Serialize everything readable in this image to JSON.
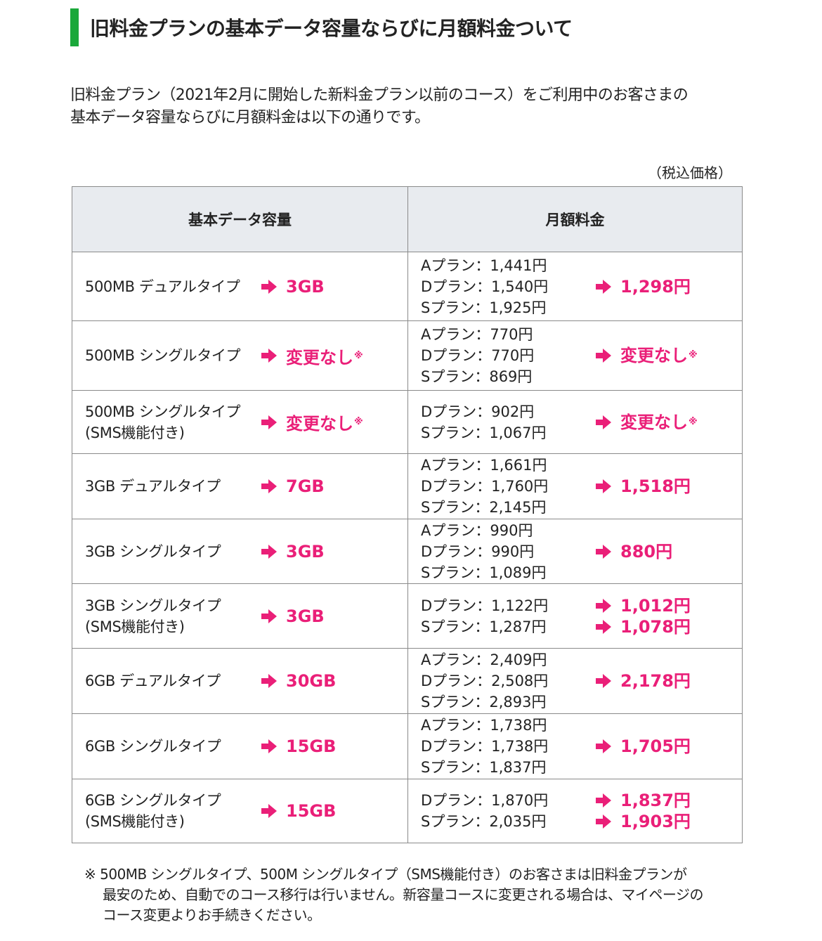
{
  "heading": "旧料金プランの基本データ容量ならびに月額料金ついて",
  "intro": [
    "旧料金プラン（2021年2月に開始した新料金プラン以前のコース）をご利用中のお客さまの",
    "基本データ容量ならびに月額料金は以下の通りです。"
  ],
  "tax_note": "（税込価格）",
  "accent_color": "#ea1f78",
  "heading_bar_color": "#1aa83a",
  "table": {
    "headers": [
      "基本データ容量",
      "月額料金"
    ],
    "rows": [
      {
        "plan": [
          "500MB デュアルタイプ"
        ],
        "new_data": "3GB",
        "new_data_mark": "",
        "fees": [
          "Aプラン：1,441円",
          "Dプラン：1,540円",
          "Sプラン：1,925円"
        ],
        "new_fees": [
          {
            "value": "1,298円",
            "mark": ""
          }
        ]
      },
      {
        "plan": [
          "500MB シングルタイプ"
        ],
        "new_data": "変更なし",
        "new_data_mark": "※",
        "fees": [
          "Aプラン：770円",
          "Dプラン：770円",
          "Sプラン：869円"
        ],
        "new_fees": [
          {
            "value": "変更なし",
            "mark": "※"
          }
        ]
      },
      {
        "plan": [
          "500MB  シングルタイプ",
          "(SMS機能付き)"
        ],
        "new_data": "変更なし",
        "new_data_mark": "※",
        "fees": [
          "Dプラン：902円",
          "Sプラン：1,067円"
        ],
        "new_fees": [
          {
            "value": "変更なし",
            "mark": "※"
          }
        ]
      },
      {
        "plan": [
          "3GB デュアルタイプ"
        ],
        "new_data": "7GB",
        "new_data_mark": "",
        "fees": [
          "Aプラン：1,661円",
          "Dプラン：1,760円",
          "Sプラン：2,145円"
        ],
        "new_fees": [
          {
            "value": "1,518円",
            "mark": ""
          }
        ]
      },
      {
        "plan": [
          "3GB シングルタイプ"
        ],
        "new_data": "3GB",
        "new_data_mark": "",
        "fees": [
          "Aプラン：990円",
          "Dプラン：990円",
          "Sプラン：1,089円"
        ],
        "new_fees": [
          {
            "value": "880円",
            "mark": ""
          }
        ]
      },
      {
        "plan": [
          "3GB シングルタイプ",
          "(SMS機能付き)"
        ],
        "new_data": "3GB",
        "new_data_mark": "",
        "fees": [
          "Dプラン：1,122円",
          "Sプラン：1,287円"
        ],
        "new_fees": [
          {
            "value": "1,012円",
            "mark": ""
          },
          {
            "value": "1,078円",
            "mark": ""
          }
        ]
      },
      {
        "plan": [
          "6GB デュアルタイプ"
        ],
        "new_data": "30GB",
        "new_data_mark": "",
        "fees": [
          "Aプラン：2,409円",
          "Dプラン：2,508円",
          "Sプラン：2,893円"
        ],
        "new_fees": [
          {
            "value": "2,178円",
            "mark": ""
          }
        ]
      },
      {
        "plan": [
          "6GB シングルタイプ"
        ],
        "new_data": "15GB",
        "new_data_mark": "",
        "fees": [
          "Aプラン：1,738円",
          "Dプラン：1,738円",
          "Sプラン：1,837円"
        ],
        "new_fees": [
          {
            "value": "1,705円",
            "mark": ""
          }
        ]
      },
      {
        "plan": [
          "6GB シングルタイプ",
          "(SMS機能付き)"
        ],
        "new_data": "15GB",
        "new_data_mark": "",
        "fees": [
          "Dプラン：1,870円",
          "Sプラン：2,035円"
        ],
        "new_fees": [
          {
            "value": "1,837円",
            "mark": ""
          },
          {
            "value": "1,903円",
            "mark": ""
          }
        ]
      }
    ]
  },
  "footnote": [
    "※ 500MB シングルタイプ、500M シングルタイプ（SMS機能付き）のお客さまは旧料金プランが",
    "最安のため、自動でのコース移行は行いません。新容量コースに変更される場合は、マイページの",
    "コース変更よりお手続きください。"
  ]
}
